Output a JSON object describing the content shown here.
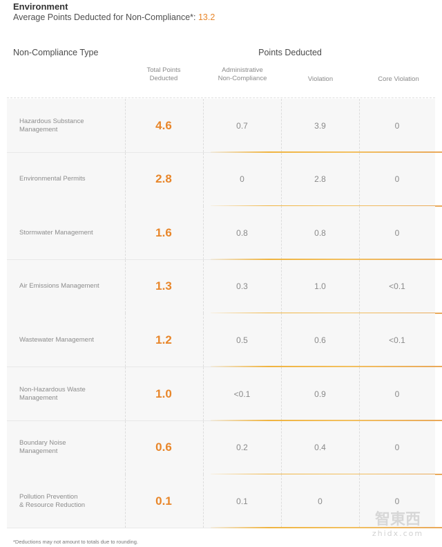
{
  "header": {
    "title": "Environment",
    "subtitle_prefix": "Average Points Deducted for Non-Compliance*: ",
    "average_value": "13.2"
  },
  "table": {
    "type_header": "Non-Compliance Type",
    "points_header": "Points Deducted",
    "sub_headers": {
      "total_line1": "Total Points",
      "total_line2": "Deducted",
      "admin_line1": "Administrative",
      "admin_line2": "Non-Compliance",
      "violation": "Violation",
      "core": "Core Violation"
    },
    "rows": [
      {
        "type_line1": "Hazardous Substance",
        "type_line2": "Management",
        "total": "4.6",
        "admin": "0.7",
        "violation": "3.9",
        "core": "0"
      },
      {
        "type_line1": "Environmental Permits",
        "type_line2": "",
        "total": "2.8",
        "admin": "0",
        "violation": "2.8",
        "core": "0"
      },
      {
        "type_line1": "Stormwater Management",
        "type_line2": "",
        "total": "1.6",
        "admin": "0.8",
        "violation": "0.8",
        "core": "0"
      },
      {
        "type_line1": "Air Emissions Management",
        "type_line2": "",
        "total": "1.3",
        "admin": "0.3",
        "violation": "1.0",
        "core": "<0.1"
      },
      {
        "type_line1": "Wastewater Management",
        "type_line2": "",
        "total": "1.2",
        "admin": "0.5",
        "violation": "0.6",
        "core": "<0.1"
      },
      {
        "type_line1": "Non-Hazardous Waste",
        "type_line2": "Management",
        "total": "1.0",
        "admin": "<0.1",
        "violation": "0.9",
        "core": "0"
      },
      {
        "type_line1": "Boundary Noise",
        "type_line2": "Management",
        "total": "0.6",
        "admin": "0.2",
        "violation": "0.4",
        "core": "0"
      },
      {
        "type_line1": "Pollution Prevention",
        "type_line2": "& Resource Reduction",
        "total": "0.1",
        "admin": "0.1",
        "violation": "0",
        "core": "0"
      }
    ]
  },
  "footnote": "*Deductions may not amount to totals due to rounding.",
  "watermark": {
    "brand": "智東西",
    "domain": "zhidx.com"
  },
  "colors": {
    "accent": "#e8862a",
    "gold_line": "#f0b440",
    "row_bg": "#f7f7f7"
  }
}
